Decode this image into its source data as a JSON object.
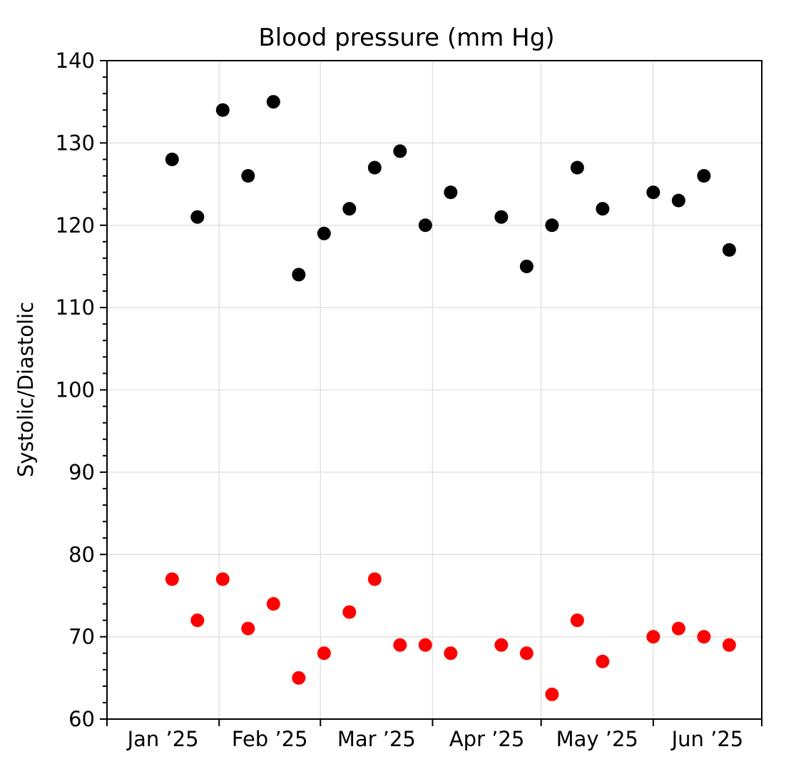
{
  "figure": {
    "background": "#ffffff"
  },
  "chart_data": {
    "type": "scatter",
    "title": "Blood pressure (mm Hg)",
    "xlabel": "",
    "ylabel": "Systolic/Diastolic",
    "ylim": [
      60,
      140
    ],
    "y_major_ticks": [
      60,
      70,
      80,
      90,
      100,
      110,
      120,
      130,
      140
    ],
    "y_minor_step": 2,
    "xlim": [
      "2025-01-01",
      "2025-07-01"
    ],
    "x_month_starts": [
      "2025-01-01",
      "2025-02-01",
      "2025-03-01",
      "2025-04-01",
      "2025-05-01",
      "2025-06-01",
      "2025-07-01"
    ],
    "x_tick_labels": [
      "Jan ’25",
      "Feb ’25",
      "Mar ’25",
      "Apr ’25",
      "May ’25",
      "Jun ’25"
    ],
    "grid": true,
    "legend": "none",
    "x": [
      "2025-01-19",
      "2025-01-26",
      "2025-02-02",
      "2025-02-09",
      "2025-02-16",
      "2025-02-23",
      "2025-03-02",
      "2025-03-09",
      "2025-03-16",
      "2025-03-23",
      "2025-03-30",
      "2025-04-06",
      "2025-04-20",
      "2025-04-27",
      "2025-05-04",
      "2025-05-11",
      "2025-05-18",
      "2025-06-01",
      "2025-06-08",
      "2025-06-15",
      "2025-06-22"
    ],
    "series": [
      {
        "name": "Systolic",
        "color": "#000000",
        "values": [
          128,
          121,
          134,
          126,
          135,
          114,
          119,
          122,
          127,
          129,
          120,
          124,
          121,
          115,
          120,
          127,
          122,
          124,
          123,
          126,
          117
        ]
      },
      {
        "name": "Diastolic",
        "color": "#ff0000",
        "values": [
          77,
          72,
          77,
          71,
          74,
          65,
          68,
          73,
          77,
          69,
          69,
          68,
          69,
          68,
          63,
          72,
          67,
          70,
          71,
          70,
          69
        ]
      }
    ],
    "style": {
      "marker_radius": 9.5,
      "grid_color": "#e2e2e2",
      "grid_width": 1.5,
      "spine_color": "#000000",
      "spine_width": 2,
      "tick_color": "#000000",
      "tick_width": 2,
      "major_tick_len": 10,
      "minor_tick_len": 6
    }
  }
}
